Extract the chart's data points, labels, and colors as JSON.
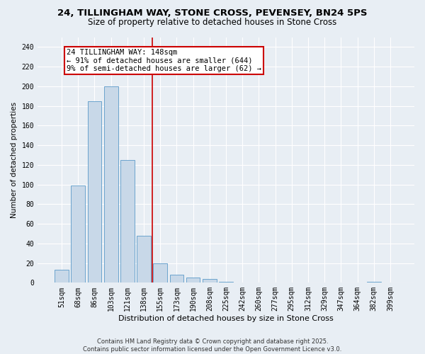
{
  "title1": "24, TILLINGHAM WAY, STONE CROSS, PEVENSEY, BN24 5PS",
  "title2": "Size of property relative to detached houses in Stone Cross",
  "xlabel": "Distribution of detached houses by size in Stone Cross",
  "ylabel": "Number of detached properties",
  "categories": [
    "51sqm",
    "68sqm",
    "86sqm",
    "103sqm",
    "121sqm",
    "138sqm",
    "155sqm",
    "173sqm",
    "190sqm",
    "208sqm",
    "225sqm",
    "242sqm",
    "260sqm",
    "277sqm",
    "295sqm",
    "312sqm",
    "329sqm",
    "347sqm",
    "364sqm",
    "382sqm",
    "399sqm"
  ],
  "values": [
    13,
    99,
    185,
    200,
    125,
    48,
    20,
    8,
    5,
    4,
    1,
    0,
    0,
    0,
    0,
    0,
    0,
    0,
    0,
    1,
    0
  ],
  "bar_color": "#c8d8e8",
  "bar_edge_color": "#5a9ac8",
  "vline_position": 5.5,
  "vline_color": "#cc0000",
  "annotation_title": "24 TILLINGHAM WAY: 148sqm",
  "annotation_line1": "← 91% of detached houses are smaller (644)",
  "annotation_line2": "9% of semi-detached houses are larger (62) →",
  "annotation_box_color": "#ffffff",
  "annotation_box_edge": "#cc0000",
  "ylim": [
    0,
    250
  ],
  "yticks": [
    0,
    20,
    40,
    60,
    80,
    100,
    120,
    140,
    160,
    180,
    200,
    220,
    240
  ],
  "background_color": "#e8eef4",
  "footer1": "Contains HM Land Registry data © Crown copyright and database right 2025.",
  "footer2": "Contains public sector information licensed under the Open Government Licence v3.0.",
  "title1_fontsize": 9.5,
  "title2_fontsize": 8.5,
  "xlabel_fontsize": 8,
  "ylabel_fontsize": 7.5,
  "tick_fontsize": 7,
  "footer_fontsize": 6,
  "annot_fontsize": 7.5
}
